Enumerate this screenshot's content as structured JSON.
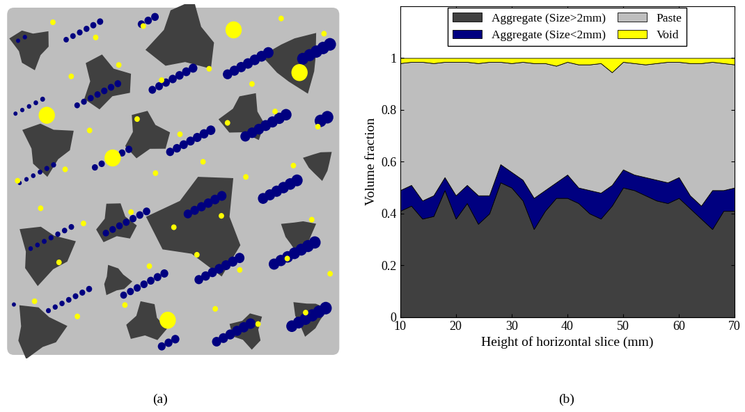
{
  "chart_data": [
    {
      "type": "image",
      "annotations": [
        "(a)"
      ]
    },
    {
      "type": "area",
      "stacked": true,
      "annotations": [
        "(b)"
      ],
      "x_label": "Height of horizontal slice (mm)",
      "y_label": "Volume fraction",
      "x": [
        10,
        12,
        14,
        16,
        18,
        20,
        22,
        24,
        26,
        28,
        30,
        32,
        34,
        36,
        38,
        40,
        42,
        44,
        46,
        48,
        50,
        52,
        54,
        56,
        58,
        60,
        62,
        64,
        66,
        68,
        70
      ],
      "series": [
        {
          "name": "Aggregate (Size>2mm)",
          "color": "#404040",
          "values": [
            0.41,
            0.43,
            0.38,
            0.39,
            0.49,
            0.38,
            0.44,
            0.36,
            0.4,
            0.52,
            0.5,
            0.45,
            0.34,
            0.41,
            0.46,
            0.46,
            0.44,
            0.4,
            0.38,
            0.43,
            0.5,
            0.49,
            0.47,
            0.45,
            0.44,
            0.46,
            0.42,
            0.38,
            0.34,
            0.41,
            0.41
          ]
        },
        {
          "name": "Aggregate (Size<2mm)",
          "color": "#000080",
          "values": [
            0.08,
            0.08,
            0.07,
            0.08,
            0.05,
            0.09,
            0.07,
            0.11,
            0.07,
            0.07,
            0.06,
            0.08,
            0.12,
            0.08,
            0.06,
            0.09,
            0.06,
            0.09,
            0.1,
            0.08,
            0.07,
            0.06,
            0.07,
            0.08,
            0.08,
            0.08,
            0.05,
            0.05,
            0.15,
            0.08,
            0.09
          ]
        },
        {
          "name": "Paste",
          "color": "#bebebe",
          "values": [
            0.49,
            0.475,
            0.535,
            0.51,
            0.445,
            0.515,
            0.475,
            0.51,
            0.515,
            0.395,
            0.42,
            0.455,
            0.52,
            0.49,
            0.45,
            0.435,
            0.475,
            0.485,
            0.5,
            0.435,
            0.415,
            0.43,
            0.435,
            0.45,
            0.465,
            0.445,
            0.51,
            0.55,
            0.495,
            0.49,
            0.475
          ]
        },
        {
          "name": "Void",
          "color": "#ffff00",
          "values": [
            0.02,
            0.015,
            0.015,
            0.02,
            0.015,
            0.015,
            0.015,
            0.02,
            0.015,
            0.015,
            0.02,
            0.015,
            0.02,
            0.02,
            0.03,
            0.015,
            0.025,
            0.025,
            0.02,
            0.055,
            0.015,
            0.02,
            0.025,
            0.02,
            0.015,
            0.015,
            0.02,
            0.02,
            0.015,
            0.02,
            0.025
          ]
        }
      ],
      "xlim": [
        10,
        70
      ],
      "xticks": [
        10,
        20,
        30,
        40,
        50,
        60,
        70
      ],
      "ylim": [
        0,
        1.2
      ],
      "yticks": [
        0,
        0.2,
        0.4,
        0.6,
        0.8,
        1
      ],
      "legend": "upper center"
    }
  ]
}
